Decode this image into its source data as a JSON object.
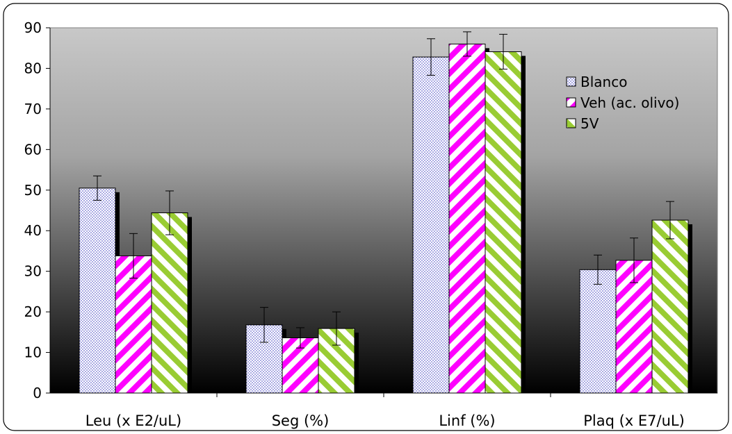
{
  "chart_data": {
    "type": "bar",
    "title": "",
    "xlabel": "",
    "ylabel": "",
    "ylim": [
      0,
      90
    ],
    "yticks": [
      "0",
      "10",
      "20",
      "30",
      "40",
      "50",
      "60",
      "70",
      "80",
      "90"
    ],
    "grid": false,
    "legend_position": "top-right",
    "plot_background": "gradient grey to black",
    "categories": [
      "Leu (x E2/uL)",
      "Seg (%)",
      "Linf (%)",
      "Plaq (x E7/uL)"
    ],
    "series": [
      {
        "name": "Blanco",
        "values": [
          50.5,
          16.8,
          82.8,
          30.4
        ],
        "errors": [
          3.0,
          4.3,
          4.5,
          3.6
        ],
        "color": "#9b9be8",
        "pattern": "dots"
      },
      {
        "name": "Veh (ac. olivo)",
        "values": [
          33.8,
          13.6,
          86.0,
          32.7
        ],
        "errors": [
          5.5,
          2.5,
          3.0,
          5.5
        ],
        "color": "#ff00ff",
        "pattern": "diagonal-stripes"
      },
      {
        "name": "5V",
        "values": [
          44.4,
          15.9,
          84.1,
          42.6
        ],
        "errors": [
          5.4,
          4.1,
          4.3,
          4.6
        ],
        "color": "#99cc33",
        "pattern": "diagonal-stripes"
      }
    ]
  }
}
